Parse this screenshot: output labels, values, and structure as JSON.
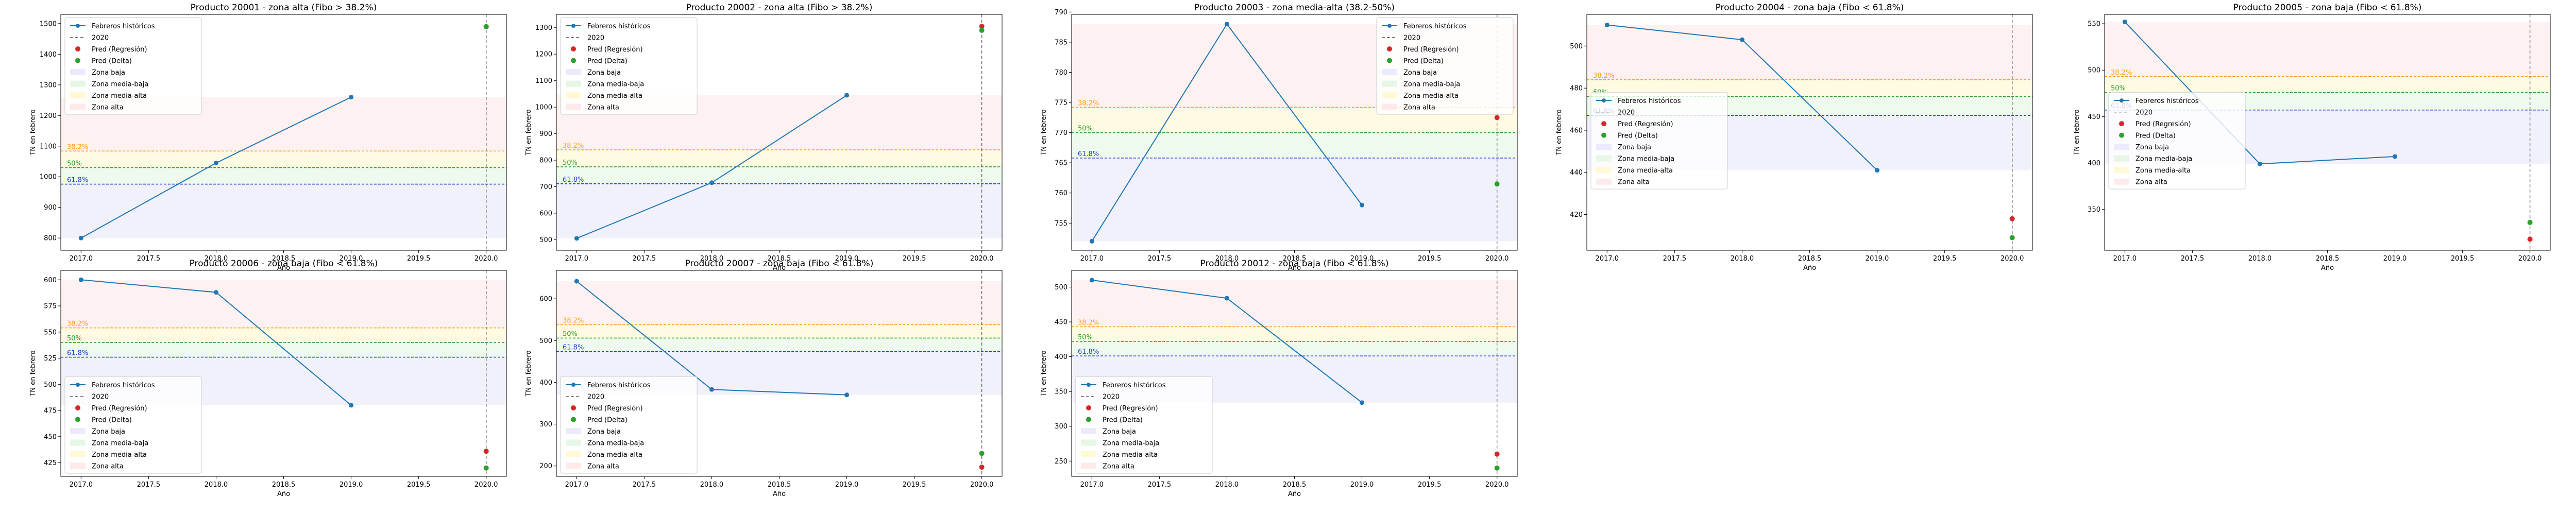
{
  "figure": {
    "background": "#ffffff"
  },
  "colors": {
    "line": "#1f77b4",
    "reg": "#d62728",
    "delta": "#2ca02c",
    "vline": "#555555",
    "zone_baja": "#e6e6fa",
    "zone_media_baja": "#e0f5e0",
    "zone_media_alta": "#fff8cc",
    "zone_alta": "#fde5e5",
    "fib382": "#ff9f1a",
    "fib50": "#2ca02c",
    "fib618": "#1f3fd6"
  },
  "legend_labels": [
    "Febreros históricos",
    "2020",
    "Pred (Regresión)",
    "Pred (Delta)",
    "Zona baja",
    "Zona media-baja",
    "Zona media-alta",
    "Zona alta"
  ],
  "fib_labels": [
    "38.2%",
    "50%",
    "61.8%"
  ],
  "chart_data": [
    {
      "type": "line",
      "title": "Producto 20001 - zona alta (Fibo > 38.2%)",
      "xlabel": "Año",
      "ylabel": "TN en febrero",
      "x": [
        2017,
        2018,
        2019
      ],
      "y": [
        800,
        1045,
        1260
      ],
      "pred_x": 2020,
      "pred_reg": 1490,
      "pred_delta": 1490,
      "xlim": [
        2016.85,
        2020.15
      ],
      "ylim": [
        760,
        1530
      ],
      "xticks": [
        2017.0,
        2017.5,
        2018.0,
        2018.5,
        2019.0,
        2019.5,
        2020.0
      ],
      "xtick_labels": [
        "2017.0",
        "2017.5",
        "2018.0",
        "2018.5",
        "2019.0",
        "2019.5",
        "2020.0"
      ],
      "yticks": [
        800,
        900,
        1000,
        1100,
        1200,
        1300,
        1400,
        1500
      ],
      "ytick_labels": [
        "800",
        "900",
        "1000",
        "1100",
        "1200",
        "1300",
        "1400",
        "1500"
      ],
      "zone_low": 800,
      "zone_high": 1260,
      "fib": [
        1084,
        1030,
        976
      ],
      "legend": "top-left",
      "vline": 2020
    },
    {
      "type": "line",
      "title": "Producto 20002 - zona alta (Fibo > 38.2%)",
      "xlabel": "Año",
      "ylabel": "TN en febrero",
      "x": [
        2017,
        2018,
        2019
      ],
      "y": [
        505,
        715,
        1045
      ],
      "pred_x": 2020,
      "pred_reg": 1305,
      "pred_delta": 1290,
      "xlim": [
        2016.85,
        2020.15
      ],
      "ylim": [
        460,
        1350
      ],
      "xticks": [
        2017.0,
        2017.5,
        2018.0,
        2018.5,
        2019.0,
        2019.5,
        2020.0
      ],
      "xtick_labels": [
        "2017.0",
        "2017.5",
        "2018.0",
        "2018.5",
        "2019.0",
        "2019.5",
        "2020.0"
      ],
      "yticks": [
        500,
        600,
        700,
        800,
        900,
        1000,
        1100,
        1200,
        1300
      ],
      "ytick_labels": [
        "500",
        "600",
        "700",
        "800",
        "900",
        "1000",
        "1100",
        "1200",
        "1300"
      ],
      "zone_low": 505,
      "zone_high": 1045,
      "fib": [
        839,
        775,
        711
      ],
      "legend": "top-left",
      "vline": 2020
    },
    {
      "type": "line",
      "title": "Producto 20003 - zona media-alta (38.2-50%)",
      "xlabel": "Año",
      "ylabel": "TN en febrero",
      "x": [
        2017,
        2018,
        2019
      ],
      "y": [
        752,
        788,
        758
      ],
      "pred_x": 2020,
      "pred_reg": 772.5,
      "pred_delta": 761.5,
      "xlim": [
        2016.85,
        2020.15
      ],
      "ylim": [
        750.5,
        789.6
      ],
      "xticks": [
        2017.0,
        2017.5,
        2018.0,
        2018.5,
        2019.0,
        2019.5,
        2020.0
      ],
      "xtick_labels": [
        "2017.0",
        "2017.5",
        "2018.0",
        "2018.5",
        "2019.0",
        "2019.5",
        "2020.0"
      ],
      "yticks": [
        755,
        760,
        765,
        770,
        775,
        780,
        785,
        790
      ],
      "ytick_labels": [
        "755",
        "760",
        "765",
        "770",
        "775",
        "780",
        "785",
        "790"
      ],
      "zone_low": 752,
      "zone_high": 788,
      "fib": [
        774.2,
        770,
        765.8
      ],
      "legend": "top-right",
      "vline": 2020
    },
    {
      "type": "line",
      "title": "Producto 20004 - zona baja (Fibo < 61.8%)",
      "xlabel": "Año",
      "ylabel": "TN en febrero",
      "x": [
        2017,
        2018,
        2019
      ],
      "y": [
        510,
        503,
        441
      ],
      "pred_x": 2020,
      "pred_reg": 418,
      "pred_delta": 409,
      "xlim": [
        2016.85,
        2020.15
      ],
      "ylim": [
        403,
        515
      ],
      "xticks": [
        2017.0,
        2017.5,
        2018.0,
        2018.5,
        2019.0,
        2019.5,
        2020.0
      ],
      "xtick_labels": [
        "2017.0",
        "2017.5",
        "2018.0",
        "2018.5",
        "2019.0",
        "2019.5",
        "2020.0"
      ],
      "yticks": [
        420,
        440,
        460,
        480,
        500
      ],
      "ytick_labels": [
        "420",
        "440",
        "460",
        "480",
        "500"
      ],
      "zone_low": 441,
      "zone_high": 510,
      "fib": [
        484,
        476,
        467
      ],
      "legend": "middle-left",
      "vline": 2020
    },
    {
      "type": "line",
      "title": "Producto 20005 - zona baja (Fibo < 61.8%)",
      "xlabel": "Año",
      "ylabel": "TN en febrero",
      "x": [
        2017,
        2018,
        2019
      ],
      "y": [
        552,
        399,
        407
      ],
      "pred_x": 2020,
      "pred_reg": 318,
      "pred_delta": 336,
      "xlim": [
        2016.85,
        2020.15
      ],
      "ylim": [
        306,
        560
      ],
      "xticks": [
        2017.0,
        2017.5,
        2018.0,
        2018.5,
        2019.0,
        2019.5,
        2020.0
      ],
      "xtick_labels": [
        "2017.0",
        "2017.5",
        "2018.0",
        "2018.5",
        "2019.0",
        "2019.5",
        "2020.0"
      ],
      "yticks": [
        350,
        400,
        450,
        500,
        550
      ],
      "ytick_labels": [
        "350",
        "400",
        "450",
        "500",
        "550"
      ],
      "zone_low": 399,
      "zone_high": 552,
      "fib": [
        493,
        476,
        457
      ],
      "legend": "middle-left",
      "vline": 2020
    },
    {
      "type": "line",
      "title": "Producto 20006 - zona baja (Fibo < 61.8%)",
      "xlabel": "Año",
      "ylabel": "TN en febrero",
      "x": [
        2017,
        2018,
        2019
      ],
      "y": [
        600,
        588,
        480
      ],
      "pred_x": 2020,
      "pred_reg": 436,
      "pred_delta": 420,
      "xlim": [
        2016.85,
        2020.15
      ],
      "ylim": [
        412,
        609
      ],
      "xticks": [
        2017.0,
        2017.5,
        2018.0,
        2018.5,
        2019.0,
        2019.5,
        2020.0
      ],
      "xtick_labels": [
        "2017.0",
        "2017.5",
        "2018.0",
        "2018.5",
        "2019.0",
        "2019.5",
        "2020.0"
      ],
      "yticks": [
        425,
        450,
        475,
        500,
        525,
        550,
        575,
        600
      ],
      "ytick_labels": [
        "425",
        "450",
        "475",
        "500",
        "525",
        "550",
        "575",
        "600"
      ],
      "zone_low": 480,
      "zone_high": 600,
      "fib": [
        554,
        540,
        526
      ],
      "legend": "bottom-left",
      "vline": 2020
    },
    {
      "type": "line",
      "title": "Producto 20007 - zona baja (Fibo < 61.8%)",
      "xlabel": "Año",
      "ylabel": "TN en febrero",
      "x": [
        2017,
        2018,
        2019
      ],
      "y": [
        642,
        383,
        370
      ],
      "pred_x": 2020,
      "pred_reg": 197,
      "pred_delta": 230,
      "xlim": [
        2016.85,
        2020.15
      ],
      "ylim": [
        175,
        668
      ],
      "xticks": [
        2017.0,
        2017.5,
        2018.0,
        2018.5,
        2019.0,
        2019.5,
        2020.0
      ],
      "xtick_labels": [
        "2017.0",
        "2017.5",
        "2018.0",
        "2018.5",
        "2019.0",
        "2019.5",
        "2020.0"
      ],
      "yticks": [
        200,
        300,
        400,
        500,
        600
      ],
      "ytick_labels": [
        "200",
        "300",
        "400",
        "500",
        "600"
      ],
      "zone_low": 370,
      "zone_high": 642,
      "fib": [
        538,
        506,
        474
      ],
      "legend": "bottom-left",
      "vline": 2020
    },
    {
      "type": "line",
      "title": "Producto 20012 - zona baja (Fibo < 61.8%)",
      "xlabel": "Año",
      "ylabel": "TN en febrero",
      "x": [
        2017,
        2018,
        2019
      ],
      "y": [
        510,
        484,
        334
      ],
      "pred_x": 2020,
      "pred_reg": 260,
      "pred_delta": 240,
      "xlim": [
        2016.85,
        2020.15
      ],
      "ylim": [
        228,
        524
      ],
      "xticks": [
        2017.0,
        2017.5,
        2018.0,
        2018.5,
        2019.0,
        2019.5,
        2020.0
      ],
      "xtick_labels": [
        "2017.0",
        "2017.5",
        "2018.0",
        "2018.5",
        "2019.0",
        "2019.5",
        "2020.0"
      ],
      "yticks": [
        250,
        300,
        350,
        400,
        450,
        500
      ],
      "ytick_labels": [
        "250",
        "300",
        "350",
        "400",
        "450",
        "500"
      ],
      "zone_low": 334,
      "zone_high": 510,
      "fib": [
        443,
        422,
        401
      ],
      "legend": "bottom-left",
      "vline": 2020
    }
  ]
}
